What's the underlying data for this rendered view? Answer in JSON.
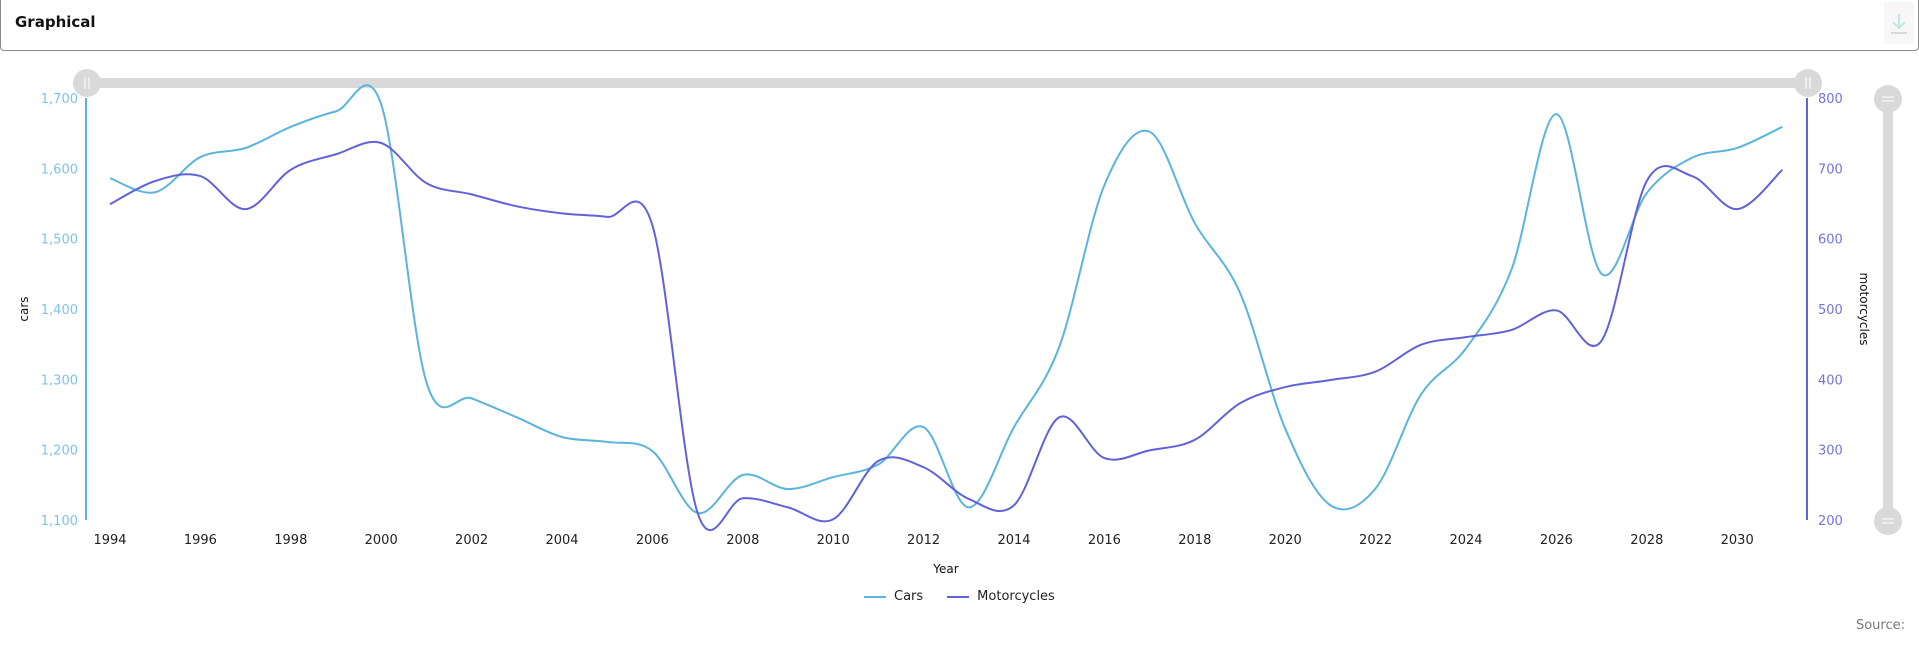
{
  "header": {
    "title": "Graphical",
    "download_icon": "download-arrow-icon"
  },
  "colors": {
    "cars": "#5ab4dc",
    "motorcycles": "#6262d8",
    "slider": "#d9d9d9"
  },
  "legend": {
    "items": [
      {
        "label": "Cars",
        "color": "#5ab4dc"
      },
      {
        "label": "Motorcycles",
        "color": "#6262d8"
      }
    ]
  },
  "footer": {
    "source_label": "Source:"
  },
  "chart_data": {
    "type": "line",
    "title": "",
    "xlabel": "Year",
    "ylabel": "cars",
    "y2label": "motorcycles",
    "x": [
      1994,
      1995,
      1996,
      1997,
      1998,
      1999,
      2000,
      2001,
      2002,
      2003,
      2004,
      2005,
      2006,
      2007,
      2008,
      2009,
      2010,
      2011,
      2012,
      2013,
      2014,
      2015,
      2016,
      2017,
      2018,
      2019,
      2020,
      2021,
      2022,
      2023,
      2024,
      2025,
      2026,
      2027,
      2028,
      2029,
      2030,
      2031
    ],
    "x_ticks": [
      "1994",
      "1996",
      "1998",
      "2000",
      "2002",
      "2004",
      "2006",
      "2008",
      "2010",
      "2012",
      "2014",
      "2016",
      "2018",
      "2020",
      "2022",
      "2024",
      "2026",
      "2028",
      "2030"
    ],
    "y_ticks_left": [
      "1,100",
      "1,200",
      "1,300",
      "1,400",
      "1,500",
      "1,600",
      "1,700"
    ],
    "y_ticks_right": [
      "200",
      "300",
      "400",
      "500",
      "600",
      "700",
      "800"
    ],
    "ylim": [
      1100,
      1700
    ],
    "y2lim": [
      200,
      800
    ],
    "grid": false,
    "legend_position": "bottom",
    "series": [
      {
        "name": "Cars",
        "axis": "left",
        "values": [
          1586,
          1566,
          1616,
          1629,
          1659,
          1681,
          1691,
          1296,
          1273,
          1246,
          1218,
          1211,
          1198,
          1110,
          1164,
          1144,
          1161,
          1179,
          1232,
          1118,
          1232,
          1346,
          1576,
          1652,
          1522,
          1423,
          1230,
          1121,
          1145,
          1278,
          1344,
          1455,
          1677,
          1450,
          1565,
          1615,
          1629,
          1659
        ]
      },
      {
        "name": "Motorcycles",
        "axis": "right",
        "values": [
          649,
          682,
          689,
          642,
          698,
          720,
          736,
          679,
          663,
          646,
          636,
          631,
          619,
          210,
          231,
          218,
          201,
          284,
          275,
          230,
          221,
          346,
          288,
          299,
          314,
          366,
          389,
          399,
          411,
          449,
          460,
          470,
          498,
          455,
          682,
          689,
          642,
          698
        ]
      }
    ]
  }
}
